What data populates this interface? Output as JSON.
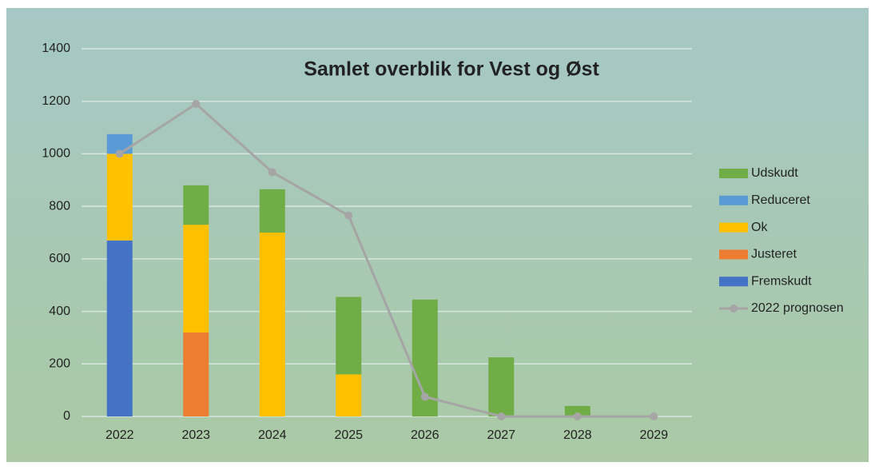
{
  "chart_data": {
    "type": "bar",
    "stacked": true,
    "title": "Samlet overblik for Vest og Øst",
    "categories": [
      "2022",
      "2023",
      "2024",
      "2025",
      "2026",
      "2027",
      "2028",
      "2029"
    ],
    "series": [
      {
        "name": "Fremskudt",
        "color": "#4472c4",
        "values": [
          670,
          0,
          0,
          0,
          0,
          0,
          0,
          0
        ]
      },
      {
        "name": "Justeret",
        "color": "#ed7d31",
        "values": [
          0,
          320,
          0,
          0,
          0,
          0,
          0,
          0
        ]
      },
      {
        "name": "Ok",
        "color": "#ffc000",
        "values": [
          330,
          410,
          700,
          160,
          0,
          0,
          0,
          0
        ]
      },
      {
        "name": "Reduceret",
        "color": "#5b9bd5",
        "values": [
          75,
          0,
          0,
          0,
          0,
          0,
          0,
          0
        ]
      },
      {
        "name": "Udskudt",
        "color": "#70ad47",
        "values": [
          0,
          150,
          165,
          295,
          445,
          225,
          40,
          0
        ]
      },
      {
        "name": "2022 prognosen",
        "type": "line",
        "color": "#a5a5a5",
        "values": [
          1000,
          1190,
          930,
          765,
          75,
          0,
          0,
          0
        ]
      }
    ],
    "ylim": [
      0,
      1400
    ],
    "yticks": [
      0,
      200,
      400,
      600,
      800,
      1000,
      1200,
      1400
    ],
    "grid": true,
    "legend": "right"
  }
}
